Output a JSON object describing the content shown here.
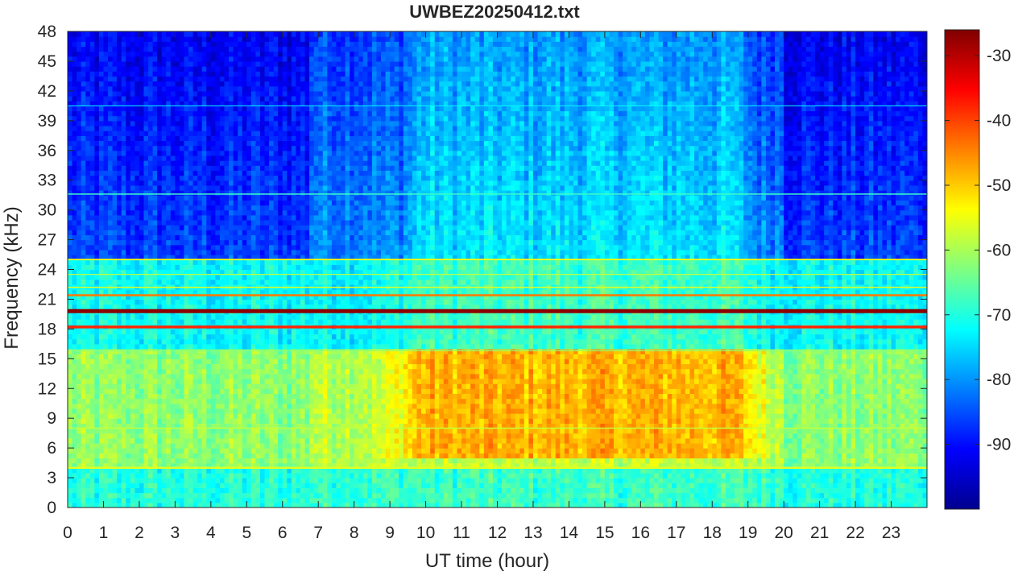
{
  "chart_data": {
    "type": "heatmap",
    "title": "UWBEZ20250412.txt",
    "xlabel": "UT time (hour)",
    "ylabel": "Frequency (kHz)",
    "xlim": [
      0,
      24
    ],
    "ylim": [
      0,
      48
    ],
    "x_ticks": [
      "0",
      "1",
      "2",
      "3",
      "4",
      "5",
      "6",
      "7",
      "8",
      "9",
      "10",
      "11",
      "12",
      "13",
      "14",
      "15",
      "16",
      "17",
      "18",
      "19",
      "20",
      "21",
      "22",
      "23"
    ],
    "y_ticks": [
      "0",
      "3",
      "6",
      "9",
      "12",
      "15",
      "18",
      "21",
      "24",
      "27",
      "30",
      "33",
      "36",
      "39",
      "42",
      "45",
      "48"
    ],
    "colorbar": {
      "range": [
        -100,
        -26
      ],
      "ticks": [
        "-90",
        "-80",
        "-70",
        "-60",
        "-50",
        "-40",
        "-30"
      ],
      "colormap": "jet"
    },
    "features": {
      "strong_lines_khz": [
        19.8,
        18.2,
        21.4
      ],
      "daytime_enhancement_hours": [
        9.5,
        19.5
      ],
      "enhanced_band_khz": [
        5,
        16
      ]
    },
    "colors": {
      "axis": "#262626",
      "frame": "#262626"
    }
  }
}
